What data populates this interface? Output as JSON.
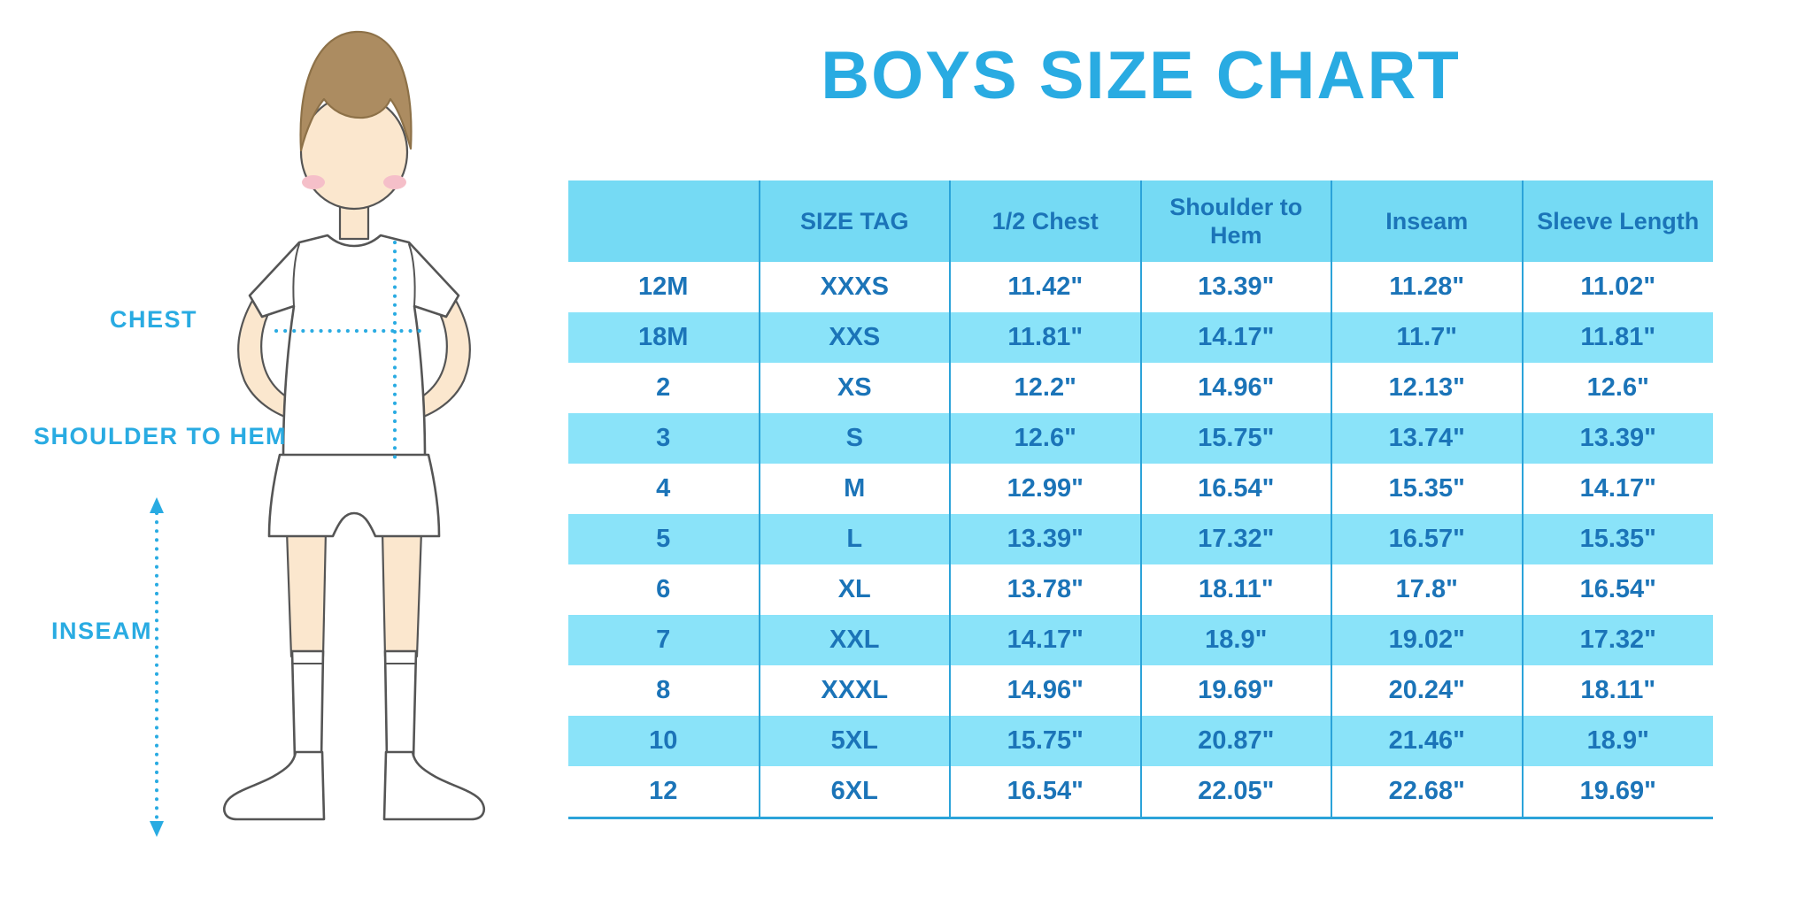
{
  "title": "BOYS SIZE CHART",
  "colors": {
    "accent": "#29ABE2",
    "header_bg": "#75DAF4",
    "row_alt_bg": "#8AE3F9",
    "table_text": "#1B74B8",
    "line_blue": "#2BA3D9",
    "skin": "#FBE7CE",
    "hair": "#AC8C61",
    "cheek": "#F5BFC9",
    "outline": "#555555"
  },
  "figure": {
    "description": "boy-illustration-with-measurement-lines",
    "labels": {
      "chest": "CHEST",
      "shoulder_to_hem": "SHOULDER TO HEM",
      "inseam": "INSEAM"
    }
  },
  "chart_data": {
    "type": "table",
    "title": "BOYS SIZE CHART",
    "headers": [
      "",
      "SIZE TAG",
      "1/2 Chest",
      "Shoulder to Hem",
      "Inseam",
      "Sleeve Length"
    ],
    "rows": [
      [
        "12M",
        "XXXS",
        "11.42\"",
        "13.39\"",
        "11.28\"",
        "11.02\""
      ],
      [
        "18M",
        "XXS",
        "11.81\"",
        "14.17\"",
        "11.7\"",
        "11.81\""
      ],
      [
        "2",
        "XS",
        "12.2\"",
        "14.96\"",
        "12.13\"",
        "12.6\""
      ],
      [
        "3",
        "S",
        "12.6\"",
        "15.75\"",
        "13.74\"",
        "13.39\""
      ],
      [
        "4",
        "M",
        "12.99\"",
        "16.54\"",
        "15.35\"",
        "14.17\""
      ],
      [
        "5",
        "L",
        "13.39\"",
        "17.32\"",
        "16.57\"",
        "15.35\""
      ],
      [
        "6",
        "XL",
        "13.78\"",
        "18.11\"",
        "17.8\"",
        "16.54\""
      ],
      [
        "7",
        "XXL",
        "14.17\"",
        "18.9\"",
        "19.02\"",
        "17.32\""
      ],
      [
        "8",
        "XXXL",
        "14.96\"",
        "19.69\"",
        "20.24\"",
        "18.11\""
      ],
      [
        "10",
        "5XL",
        "15.75\"",
        "20.87\"",
        "21.46\"",
        "18.9\""
      ],
      [
        "12",
        "6XL",
        "16.54\"",
        "22.05\"",
        "22.68\"",
        "19.69\""
      ]
    ]
  }
}
